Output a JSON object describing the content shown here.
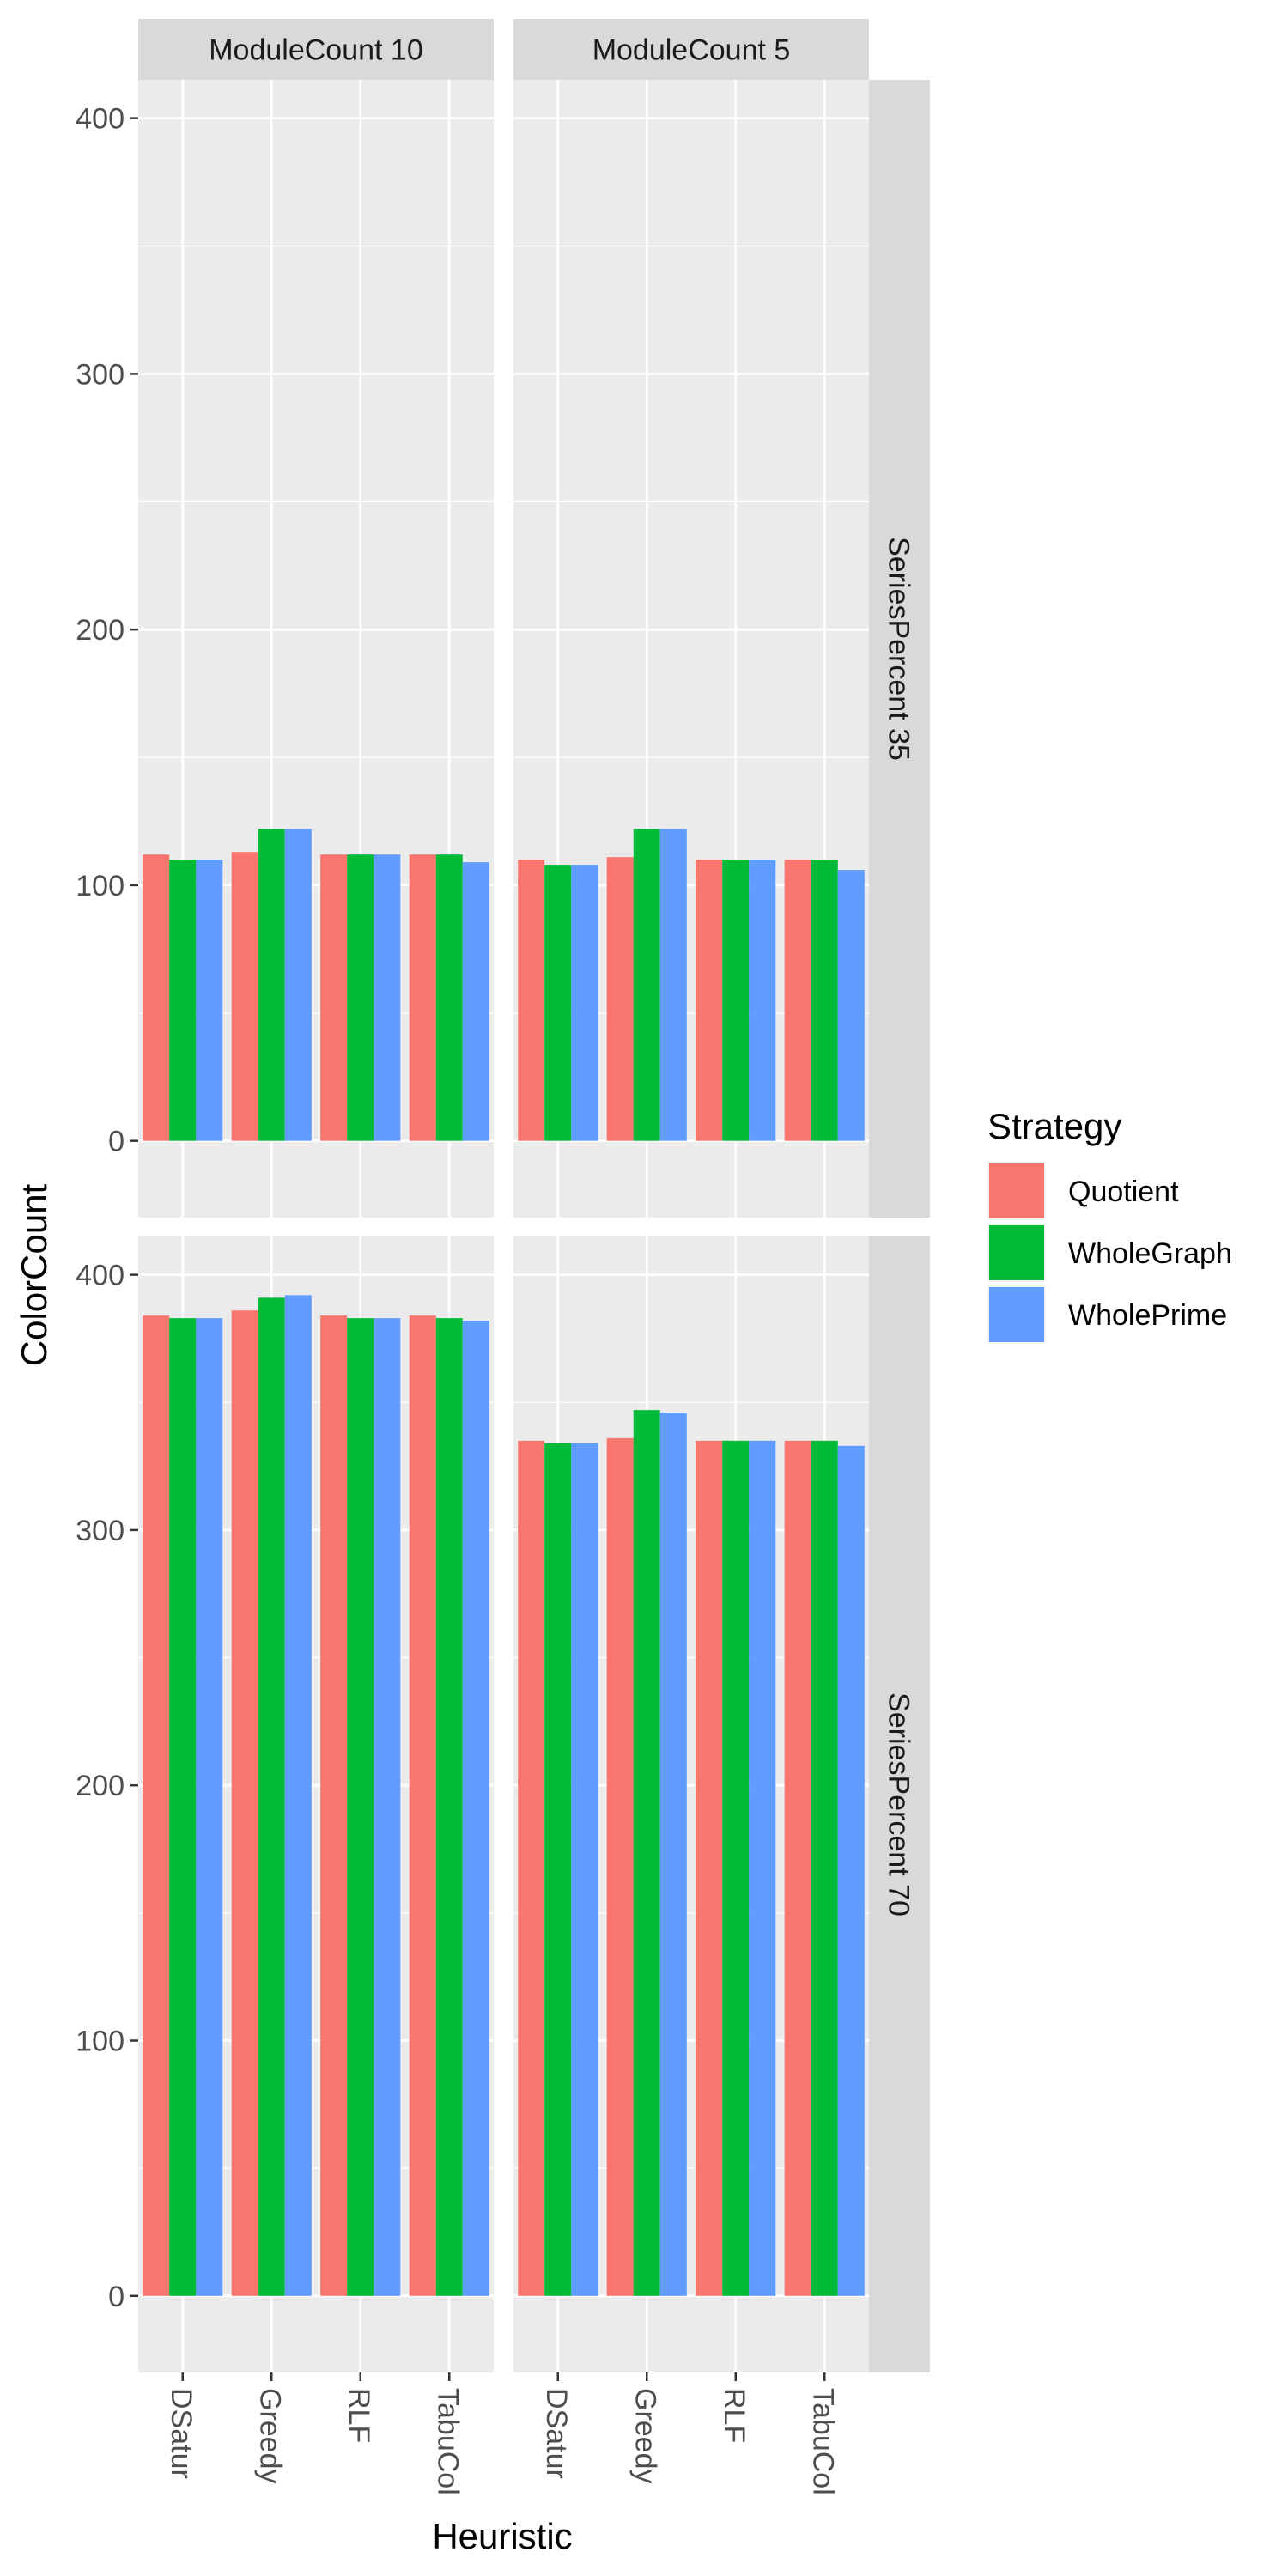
{
  "chart_data": {
    "type": "bar",
    "xlabel": "Heuristic",
    "ylabel": "ColorCount",
    "legend_title": "Strategy",
    "legend_position": "right",
    "grid": true,
    "ylim": [
      -30,
      415
    ],
    "y_ticks": [
      0,
      100,
      200,
      300,
      400
    ],
    "categories": [
      "DSatur",
      "Greedy",
      "RLF",
      "TabuCol"
    ],
    "col_facets": [
      "ModuleCount 10",
      "ModuleCount 5"
    ],
    "row_facets": [
      "SeriesPercent 35",
      "SeriesPercent 70"
    ],
    "series_names": [
      "Quotient",
      "WholeGraph",
      "WholePrime"
    ],
    "colors": [
      "#F8766D",
      "#00BA38",
      "#619CFF"
    ],
    "panels": [
      {
        "col": "ModuleCount 10",
        "row": "SeriesPercent 35",
        "series": [
          {
            "name": "Quotient",
            "values": [
              112,
              113,
              112,
              112
            ]
          },
          {
            "name": "WholeGraph",
            "values": [
              110,
              122,
              112,
              112
            ]
          },
          {
            "name": "WholePrime",
            "values": [
              110,
              122,
              112,
              109
            ]
          }
        ]
      },
      {
        "col": "ModuleCount 5",
        "row": "SeriesPercent 35",
        "series": [
          {
            "name": "Quotient",
            "values": [
              110,
              111,
              110,
              110
            ]
          },
          {
            "name": "WholeGraph",
            "values": [
              108,
              122,
              110,
              110
            ]
          },
          {
            "name": "WholePrime",
            "values": [
              108,
              122,
              110,
              106
            ]
          }
        ]
      },
      {
        "col": "ModuleCount 10",
        "row": "SeriesPercent 70",
        "series": [
          {
            "name": "Quotient",
            "values": [
              384,
              386,
              384,
              384
            ]
          },
          {
            "name": "WholeGraph",
            "values": [
              383,
              391,
              383,
              383
            ]
          },
          {
            "name": "WholePrime",
            "values": [
              383,
              392,
              383,
              382
            ]
          }
        ]
      },
      {
        "col": "ModuleCount 5",
        "row": "SeriesPercent 70",
        "series": [
          {
            "name": "Quotient",
            "values": [
              335,
              336,
              335,
              335
            ]
          },
          {
            "name": "WholeGraph",
            "values": [
              334,
              347,
              335,
              335
            ]
          },
          {
            "name": "WholePrime",
            "values": [
              334,
              346,
              335,
              333
            ]
          }
        ]
      }
    ]
  }
}
